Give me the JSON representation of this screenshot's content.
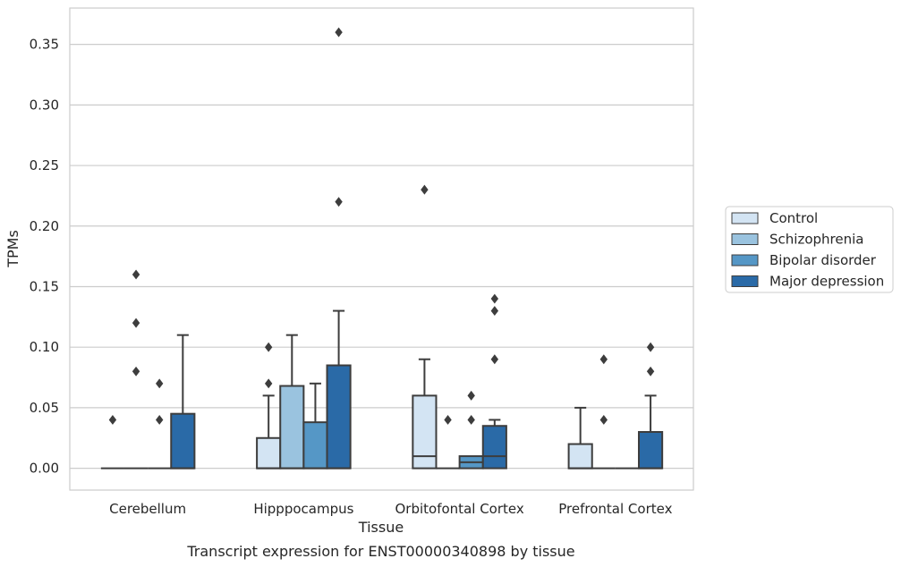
{
  "chart_data": {
    "type": "boxplot",
    "caption": "Transcript expression for ENST00000340898 by tissue",
    "xlabel": "Tissue",
    "ylabel": "TPMs",
    "ylim": [
      -0.018,
      0.38
    ],
    "yticks": [
      0.0,
      0.05,
      0.1,
      0.15,
      0.2,
      0.25,
      0.3,
      0.35
    ],
    "ytick_labels": [
      "0.00",
      "0.05",
      "0.10",
      "0.15",
      "0.20",
      "0.25",
      "0.30",
      "0.35"
    ],
    "grid": "horizontal",
    "legend_position": "right",
    "categories": [
      "Cerebellum",
      "Hipppocampus",
      "Orbitofontal Cortex",
      "Prefrontal Cortex"
    ],
    "series": [
      {
        "name": "Control",
        "color": "#d3e4f3",
        "boxes": [
          {
            "q1": 0.0,
            "median": 0.0,
            "q3": 0.0,
            "whisker_low": 0.0,
            "whisker_high": 0.0,
            "outliers": [
              0.04
            ]
          },
          {
            "q1": 0.0,
            "median": 0.0,
            "q3": 0.025,
            "whisker_low": 0.0,
            "whisker_high": 0.06,
            "outliers": [
              0.07,
              0.1
            ]
          },
          {
            "q1": 0.0,
            "median": 0.01,
            "q3": 0.06,
            "whisker_low": 0.0,
            "whisker_high": 0.09,
            "outliers": [
              0.23
            ]
          },
          {
            "q1": 0.0,
            "median": 0.0,
            "q3": 0.02,
            "whisker_low": 0.0,
            "whisker_high": 0.05,
            "outliers": []
          }
        ]
      },
      {
        "name": "Schizophrenia",
        "color": "#9ac3df",
        "boxes": [
          {
            "q1": 0.0,
            "median": 0.0,
            "q3": 0.0,
            "whisker_low": 0.0,
            "whisker_high": 0.0,
            "outliers": [
              0.08,
              0.12,
              0.16
            ]
          },
          {
            "q1": 0.0,
            "median": 0.0,
            "q3": 0.068,
            "whisker_low": 0.0,
            "whisker_high": 0.11,
            "outliers": []
          },
          {
            "q1": 0.0,
            "median": 0.0,
            "q3": 0.0,
            "whisker_low": 0.0,
            "whisker_high": 0.0,
            "outliers": [
              0.04
            ]
          },
          {
            "q1": 0.0,
            "median": 0.0,
            "q3": 0.0,
            "whisker_low": 0.0,
            "whisker_high": 0.0,
            "outliers": [
              0.04,
              0.09
            ]
          }
        ]
      },
      {
        "name": "Bipolar disorder",
        "color": "#5597c6",
        "boxes": [
          {
            "q1": 0.0,
            "median": 0.0,
            "q3": 0.0,
            "whisker_low": 0.0,
            "whisker_high": 0.0,
            "outliers": [
              0.04,
              0.07
            ]
          },
          {
            "q1": 0.0,
            "median": 0.0,
            "q3": 0.038,
            "whisker_low": 0.0,
            "whisker_high": 0.07,
            "outliers": []
          },
          {
            "q1": 0.0,
            "median": 0.005,
            "q3": 0.01,
            "whisker_low": 0.0,
            "whisker_high": 0.01,
            "outliers": [
              0.04,
              0.06
            ]
          },
          {
            "q1": 0.0,
            "median": 0.0,
            "q3": 0.0,
            "whisker_low": 0.0,
            "whisker_high": 0.0,
            "outliers": []
          }
        ]
      },
      {
        "name": "Major depression",
        "color": "#2a6aa7",
        "boxes": [
          {
            "q1": 0.0,
            "median": 0.0,
            "q3": 0.045,
            "whisker_low": 0.0,
            "whisker_high": 0.11,
            "outliers": []
          },
          {
            "q1": 0.0,
            "median": 0.0,
            "q3": 0.085,
            "whisker_low": 0.0,
            "whisker_high": 0.13,
            "outliers": [
              0.22,
              0.36
            ]
          },
          {
            "q1": 0.0,
            "median": 0.01,
            "q3": 0.035,
            "whisker_low": 0.0,
            "whisker_high": 0.04,
            "outliers": [
              0.09,
              0.13,
              0.14
            ]
          },
          {
            "q1": 0.0,
            "median": 0.0,
            "q3": 0.03,
            "whisker_low": 0.0,
            "whisker_high": 0.06,
            "outliers": [
              0.08,
              0.1
            ]
          }
        ]
      }
    ]
  }
}
